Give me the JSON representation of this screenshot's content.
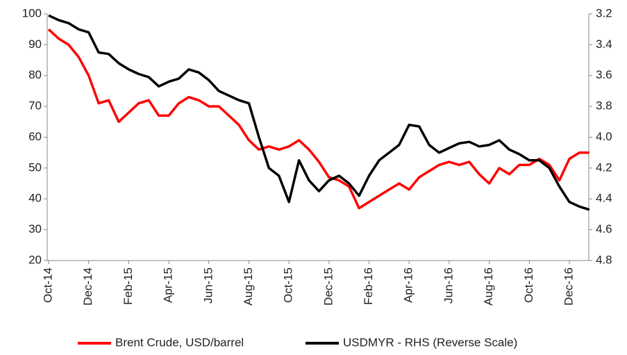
{
  "chart_data": {
    "type": "line",
    "categories": [
      "Oct-14",
      null,
      null,
      null,
      "Dec-14",
      null,
      null,
      null,
      "Feb-15",
      null,
      null,
      null,
      "Apr-15",
      null,
      null,
      null,
      "Jun-15",
      null,
      null,
      null,
      "Aug-15",
      null,
      null,
      null,
      "Oct-15",
      null,
      null,
      null,
      "Dec-15",
      null,
      null,
      null,
      "Feb-16",
      null,
      null,
      null,
      "Apr-16",
      null,
      null,
      null,
      "Jun-16",
      null,
      null,
      null,
      "Aug-16",
      null,
      null,
      null,
      "Oct-16",
      null,
      null,
      null,
      "Dec-16",
      null,
      null
    ],
    "series": [
      {
        "name": "Brent Crude, USD/barrel",
        "color": "#ff0000",
        "values": [
          95,
          92,
          90,
          86,
          80,
          71,
          72,
          65,
          68,
          71,
          72,
          67,
          67,
          71,
          73,
          72,
          70,
          70,
          67,
          64,
          59,
          56,
          57,
          56,
          57,
          59,
          56,
          52,
          47,
          46,
          44,
          37,
          39,
          41,
          43,
          45,
          43,
          47,
          49,
          51,
          52,
          51,
          52,
          48,
          45,
          50,
          48,
          51,
          51,
          53,
          51,
          46,
          53,
          55,
          55
        ]
      },
      {
        "name": "USDMYR - RHS (Reverse Scale)",
        "color": "#000000",
        "axis": "y2",
        "values": [
          3.21,
          3.24,
          3.26,
          3.3,
          3.32,
          3.45,
          3.46,
          3.52,
          3.56,
          3.59,
          3.61,
          3.67,
          3.64,
          3.62,
          3.56,
          3.58,
          3.63,
          3.7,
          3.73,
          3.76,
          3.78,
          4.0,
          4.2,
          4.25,
          4.42,
          4.15,
          4.28,
          4.35,
          4.28,
          4.25,
          4.3,
          4.38,
          4.25,
          4.15,
          4.1,
          4.05,
          3.92,
          3.93,
          4.05,
          4.1,
          4.07,
          4.04,
          4.03,
          4.06,
          4.05,
          4.02,
          4.08,
          4.11,
          4.15,
          4.15,
          4.2,
          4.32,
          4.42,
          4.45,
          4.47
        ]
      }
    ],
    "ylim": [
      20,
      100
    ],
    "yticks": [
      20,
      30,
      40,
      50,
      60,
      70,
      80,
      90,
      100
    ],
    "y2lim": [
      3.2,
      4.8
    ],
    "y2_reversed": true,
    "y2ticks": [
      3.2,
      3.4,
      3.6,
      3.8,
      {
        "value": 4,
        "label": "4.0"
      },
      4.2,
      4.4,
      4.6,
      4.8
    ],
    "legend": "bottom"
  }
}
